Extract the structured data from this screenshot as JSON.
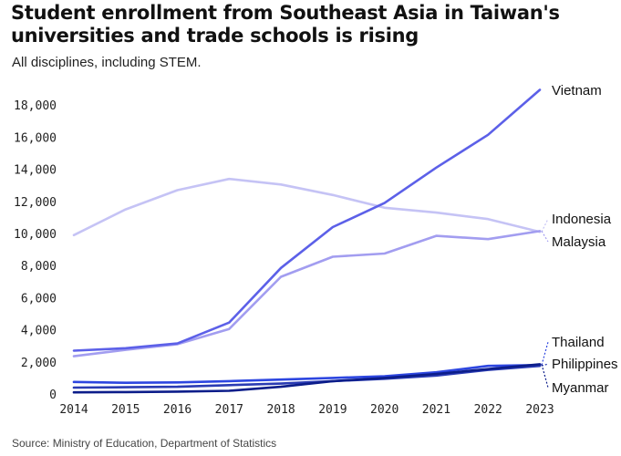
{
  "chart_data": {
    "type": "line",
    "title": "Student enrollment from Southeast Asia in Taiwan's universities and trade schools is rising",
    "subtitle": "All disciplines, including STEM.",
    "source": "Source: Ministry of Education, Department of Statistics",
    "xlabel": "",
    "ylabel": "",
    "x": [
      "2014",
      "2015",
      "2016",
      "2017",
      "2018",
      "2019",
      "2020",
      "2021",
      "2022",
      "2023"
    ],
    "yticks": [
      "0",
      "2,000",
      "4,000",
      "6,000",
      "8,000",
      "10,000",
      "12,000",
      "14,000",
      "16,000",
      "18,000"
    ],
    "ylim": [
      0,
      19000
    ],
    "grid": false,
    "legend": "direct labels at line ends",
    "series": [
      {
        "name": "Indonesia",
        "color": "#c5c3f5",
        "values": [
          9900,
          11500,
          12700,
          13400,
          13050,
          12400,
          11600,
          11300,
          10900,
          10100
        ]
      },
      {
        "name": "Malaysia",
        "color": "#a29df0",
        "values": [
          2350,
          2750,
          3100,
          4050,
          7300,
          8550,
          8750,
          9850,
          9650,
          10150
        ]
      },
      {
        "name": "Vietnam",
        "color": "#5c60e8",
        "values": [
          2700,
          2850,
          3150,
          4450,
          7850,
          10400,
          11900,
          14100,
          16150,
          18950
        ]
      },
      {
        "name": "Thailand",
        "color": "#2d46e0",
        "values": [
          750,
          700,
          720,
          800,
          900,
          1000,
          1100,
          1350,
          1750,
          1800
        ]
      },
      {
        "name": "Philippines",
        "color": "#2a3bb3",
        "values": [
          400,
          420,
          450,
          550,
          650,
          800,
          950,
          1150,
          1500,
          1750
        ]
      },
      {
        "name": "Myanmar",
        "color": "#0c1d8a",
        "values": [
          100,
          120,
          150,
          200,
          450,
          800,
          1000,
          1250,
          1550,
          1850
        ]
      }
    ]
  }
}
